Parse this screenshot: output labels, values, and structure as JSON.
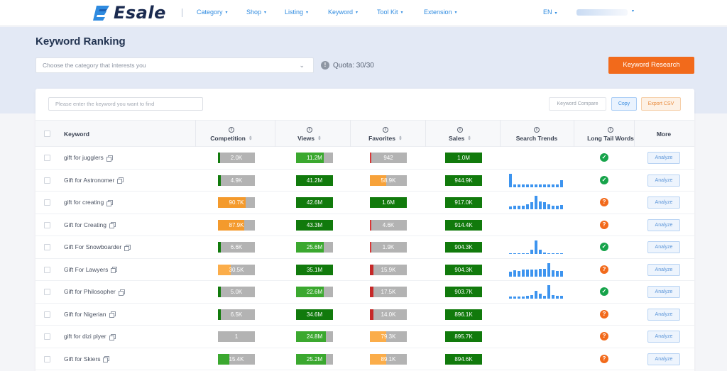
{
  "brand": {
    "name": "Esale",
    "accent": "#2f8be0",
    "primary_action": "#f26a1b"
  },
  "nav": {
    "items": [
      "Category",
      "Shop",
      "Listing",
      "Keyword",
      "Tool Kit",
      "Extension"
    ],
    "lang": "EN"
  },
  "page": {
    "title": "Keyword Ranking",
    "category_placeholder": "Choose the category that interests you",
    "quota": "Quota: 30/30",
    "research_button": "Keyword Research"
  },
  "toolbar": {
    "search_placeholder": "Please enter the keyword you want to find",
    "compare": "Keyword Compare",
    "copy": "Copy",
    "export": "Export CSV"
  },
  "columns": {
    "keyword": "Keyword",
    "competition": "Competition",
    "views": "Views",
    "favorites": "Favorites",
    "sales": "Sales",
    "trends": "Search Trends",
    "longtail": "Long Tail Words",
    "more": "More"
  },
  "analyze_label": "Analyze",
  "rows": [
    {
      "keyword": "gift for jugglers",
      "competition": "2.0K",
      "views": "11.2M",
      "favorites": "942",
      "sales": "1.0M",
      "longtail": "ok",
      "trend": []
    },
    {
      "keyword": "Gift for Astronomer",
      "competition": "4.9K",
      "views": "41.2M",
      "favorites": "58.9K",
      "sales": "944.9K",
      "longtail": "ok",
      "trend": [
        1.0,
        0.2,
        0.2,
        0.2,
        0.2,
        0.2,
        0.2,
        0.2,
        0.2,
        0.2,
        0.2,
        0.2,
        0.55
      ]
    },
    {
      "keyword": "gift for creating",
      "competition": "90.7K",
      "views": "42.6M",
      "favorites": "1.6M",
      "sales": "917.0K",
      "longtail": "q",
      "trend": [
        0.2,
        0.25,
        0.25,
        0.25,
        0.35,
        0.5,
        1.0,
        0.6,
        0.5,
        0.35,
        0.25,
        0.25,
        0.3
      ]
    },
    {
      "keyword": "Gift for Creating",
      "competition": "87.9K",
      "views": "43.3M",
      "favorites": "4.6K",
      "sales": "914.4K",
      "longtail": "q",
      "trend": []
    },
    {
      "keyword": "Gift For Snowboarder",
      "competition": "6.6K",
      "views": "25.6M",
      "favorites": "1.9K",
      "sales": "904.3K",
      "longtail": "ok",
      "trend": [
        0.0,
        0.0,
        0.0,
        0.05,
        0.05,
        0.3,
        1.0,
        0.3,
        0.1,
        0.05,
        0.05,
        0.05,
        0.0
      ]
    },
    {
      "keyword": "Gift For Lawyers",
      "competition": "30.5K",
      "views": "35.1M",
      "favorites": "15.9K",
      "sales": "904.3K",
      "longtail": "q",
      "trend": [
        0.35,
        0.45,
        0.4,
        0.5,
        0.55,
        0.5,
        0.55,
        0.6,
        0.6,
        1.0,
        0.45,
        0.4,
        0.4
      ]
    },
    {
      "keyword": "Gift for Philosopher",
      "competition": "5.0K",
      "views": "22.6M",
      "favorites": "17.5K",
      "sales": "903.7K",
      "longtail": "ok",
      "trend": [
        0.15,
        0.15,
        0.15,
        0.15,
        0.2,
        0.25,
        0.6,
        0.35,
        0.2,
        1.0,
        0.25,
        0.2,
        0.2
      ]
    },
    {
      "keyword": "Gift for Nigerian",
      "competition": "6.5K",
      "views": "34.6M",
      "favorites": "14.0K",
      "sales": "896.1K",
      "longtail": "q",
      "trend": []
    },
    {
      "keyword": "gift for dizi plyer",
      "competition": "1",
      "views": "24.8M",
      "favorites": "79.3K",
      "sales": "895.7K",
      "longtail": "q",
      "trend": []
    },
    {
      "keyword": "Gift for Skiers",
      "competition": "15.4K",
      "views": "25.2M",
      "favorites": "89.1K",
      "sales": "894.6K",
      "longtail": "q",
      "trend": []
    }
  ]
}
